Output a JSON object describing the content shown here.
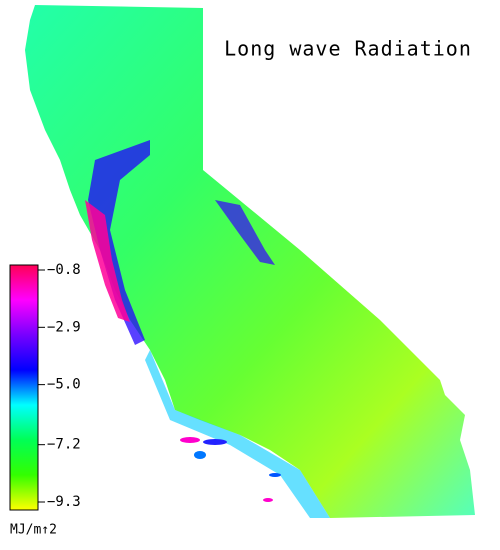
{
  "map": {
    "title": "Long wave Radiation",
    "colorbar": {
      "ticks": [
        {
          "value": -0.8,
          "label": "−0.8"
        },
        {
          "value": -2.9,
          "label": "−2.9"
        },
        {
          "value": -5.0,
          "label": "−5.0"
        },
        {
          "value": -7.2,
          "label": "−7.2"
        },
        {
          "value": -9.3,
          "label": "−9.3"
        }
      ],
      "colors": [
        "#ff0055",
        "#ff00ff",
        "#7700ff",
        "#0000ff",
        "#00ffff",
        "#00ff55",
        "#33ff00",
        "#ffff00"
      ],
      "unit": "MJ/m↑2"
    }
  }
}
